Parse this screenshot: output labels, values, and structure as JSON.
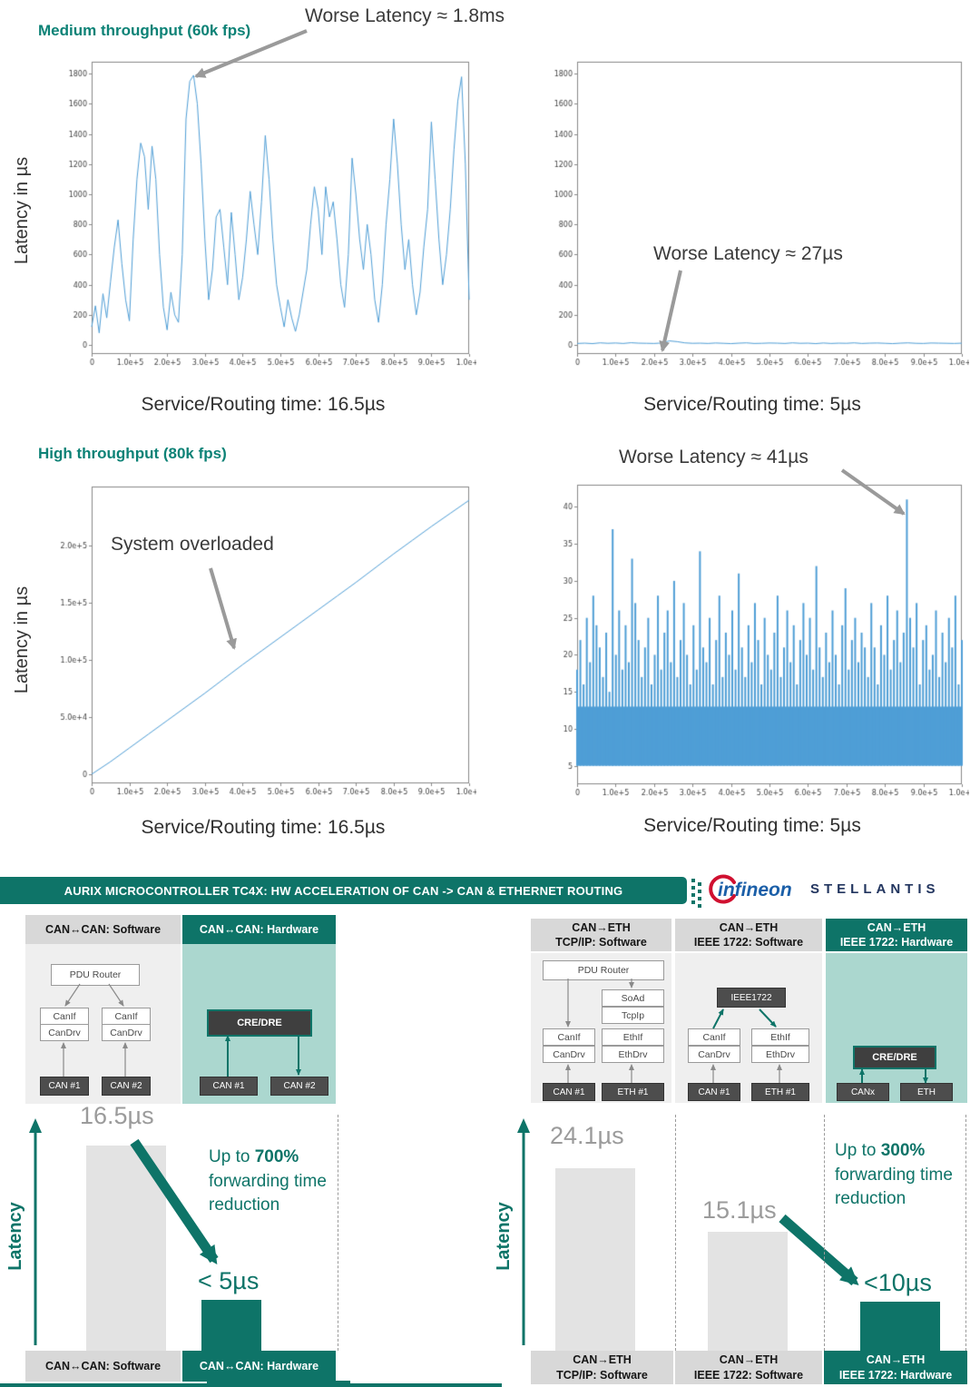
{
  "labels": {
    "medium": "Medium throughput (60k fps)",
    "high": "High throughput (80k fps)",
    "ylabel": "Latency in µs"
  },
  "annotations": {
    "worse_18ms": "Worse Latency ≈ 1.8ms",
    "worse_27us": "Worse Latency ≈ 27µs",
    "worse_41us": "Worse Latency ≈ 41µs",
    "overloaded": "System overloaded"
  },
  "chart_data": [
    {
      "id": "medium_sw",
      "type": "line",
      "title": "Medium throughput (60k fps) - software routing latency",
      "caption": "Service/Routing time: 16.5µs",
      "annotation": "Worse Latency ≈ 1.8ms",
      "color": "#4f9ed6",
      "xlim": [
        0,
        1000000
      ],
      "ylim": [
        -60,
        1880
      ],
      "x_step": 10000,
      "x_tick_labels": [
        "0",
        "1.0e+5",
        "2.0e+5",
        "3.0e+5",
        "4.0e+5",
        "5.0e+5",
        "6.0e+5",
        "7.0e+5",
        "8.0e+5",
        "9.0e+5",
        "1.0e+6"
      ],
      "y_ticks": [
        0,
        200,
        400,
        600,
        800,
        1000,
        1200,
        1400,
        1600,
        1800
      ],
      "y_tick_labels": [
        "0",
        "200",
        "400",
        "600",
        "800",
        "1000",
        "1200",
        "1400",
        "1600",
        "1800"
      ],
      "y": [
        120,
        260,
        80,
        340,
        180,
        420,
        650,
        830,
        540,
        300,
        160,
        700,
        1100,
        1340,
        1250,
        900,
        1320,
        1100,
        600,
        250,
        100,
        350,
        200,
        150,
        600,
        1500,
        1750,
        1790,
        1600,
        1200,
        700,
        300,
        500,
        850,
        900,
        650,
        400,
        880,
        600,
        300,
        450,
        700,
        1020,
        800,
        600,
        950,
        1390,
        1100,
        700,
        400,
        250,
        120,
        300,
        180,
        90,
        200,
        350,
        500,
        800,
        1050,
        900,
        600,
        1050,
        850,
        950,
        700,
        400,
        250,
        600,
        1240,
        1000,
        700,
        500,
        800,
        600,
        300,
        150,
        400,
        800,
        1100,
        1500,
        1200,
        800,
        500,
        700,
        400,
        200,
        350,
        650,
        900,
        1480,
        1100,
        700,
        400,
        600,
        900,
        1300,
        1620,
        1780,
        1200,
        300
      ]
    },
    {
      "id": "medium_hw",
      "type": "line",
      "title": "Medium throughput (60k fps) - hardware routing latency",
      "caption": "Service/Routing time: 5µs",
      "annotation": "Worse Latency ≈ 27µs",
      "color": "#4f9ed6",
      "xlim": [
        0,
        1000000
      ],
      "ylim": [
        -60,
        1880
      ],
      "x_step": 20000,
      "x_tick_labels": [
        "0",
        "1.0e+5",
        "2.0e+5",
        "3.0e+5",
        "4.0e+5",
        "5.0e+5",
        "6.0e+5",
        "7.0e+5",
        "8.0e+5",
        "9.0e+5",
        "1.0e+6"
      ],
      "y_ticks": [
        0,
        200,
        400,
        600,
        800,
        1000,
        1200,
        1400,
        1600,
        1800
      ],
      "y_tick_labels": [
        "0",
        "200",
        "400",
        "600",
        "800",
        "1000",
        "1200",
        "1400",
        "1600",
        "1800"
      ],
      "y": [
        10,
        12,
        9,
        14,
        11,
        13,
        10,
        15,
        12,
        11,
        10,
        13,
        27,
        22,
        14,
        11,
        12,
        10,
        13,
        11,
        9,
        12,
        14,
        10,
        11,
        13,
        12,
        10,
        14,
        11,
        12,
        9,
        13,
        10,
        12,
        11,
        14,
        10,
        12,
        13,
        11,
        9,
        12,
        14,
        11,
        10,
        13,
        12,
        11,
        10,
        12
      ]
    },
    {
      "id": "high_sw",
      "type": "line",
      "title": "High throughput (80k fps) - software routing latency (system overloaded)",
      "caption": "Service/Routing time: 16.5µs",
      "annotation": "System overloaded",
      "color": "#4f9ed6",
      "xlim": [
        0,
        1000000
      ],
      "ylim": [
        -8000,
        252000
      ],
      "x_step": 50000,
      "x_tick_labels": [
        "0",
        "1.0e+5",
        "2.0e+5",
        "3.0e+5",
        "4.0e+5",
        "5.0e+5",
        "6.0e+5",
        "7.0e+5",
        "8.0e+5",
        "9.0e+5",
        "1.0e+6"
      ],
      "y_ticks": [
        0,
        50000,
        100000,
        150000,
        200000
      ],
      "y_tick_labels": [
        "0",
        "5.0e+4",
        "1.0e+5",
        "1.5e+5",
        "2.0e+5"
      ],
      "y": [
        0,
        11000,
        23000,
        35000,
        47000,
        59000,
        71000,
        83500,
        96000,
        108000,
        120000,
        132000,
        144000,
        156000,
        168000,
        180500,
        193000,
        205000,
        217000,
        228500,
        240000
      ]
    },
    {
      "id": "high_hw",
      "type": "vlines",
      "title": "High throughput (80k fps) - hardware routing latency",
      "caption": "Service/Routing time: 5µs",
      "annotation": "Worse Latency ≈ 41µs",
      "color": "#4f9ed6",
      "xlim": [
        0,
        1000000
      ],
      "ylim": [
        2.5,
        43
      ],
      "baseline": 5,
      "base_fill_to": 13,
      "x_step": 8403.4,
      "x_tick_labels": [
        "0",
        "1.0e+5",
        "2.0e+5",
        "3.0e+5",
        "4.0e+5",
        "5.0e+5",
        "6.0e+5",
        "7.0e+5",
        "8.0e+5",
        "9.0e+5",
        "1.0e+6"
      ],
      "y_ticks": [
        5,
        10,
        15,
        20,
        25,
        30,
        35,
        40
      ],
      "y_tick_labels": [
        "5",
        "10",
        "15",
        "20",
        "25",
        "30",
        "35",
        "40"
      ],
      "y": [
        18,
        22,
        16,
        25,
        19,
        28,
        24,
        21,
        17,
        23,
        15,
        37,
        20,
        26,
        18,
        24,
        19,
        33,
        27,
        22,
        17,
        21,
        25,
        16,
        20,
        28,
        18,
        23,
        26,
        19,
        30,
        17,
        22,
        27,
        20,
        16,
        24,
        18,
        34,
        21,
        19,
        25,
        16,
        22,
        28,
        17,
        23,
        20,
        26,
        18,
        31,
        21,
        17,
        24,
        19,
        27,
        22,
        16,
        25,
        20,
        18,
        23,
        28,
        17,
        21,
        26,
        19,
        24,
        16,
        22,
        27,
        20,
        25,
        18,
        32,
        21,
        17,
        23,
        19,
        26,
        20,
        16,
        24,
        29,
        18,
        22,
        25,
        19,
        23,
        21,
        17,
        27,
        21,
        16,
        24,
        20,
        28,
        18,
        22,
        26,
        19,
        23,
        41,
        25,
        21,
        27,
        16,
        22,
        24,
        18,
        20,
        26,
        17,
        23,
        19,
        25,
        21,
        28,
        16,
        22
      ]
    }
  ],
  "banner": {
    "title": "AURIX MICROCONTROLLER TC4X: HW ACCELERATION OF CAN -> CAN & ETHERNET ROUTING"
  },
  "logos": {
    "infineon": "infineon",
    "stellantis": "STELLANTIS"
  },
  "left_panel": {
    "sw_title": "CAN↔CAN: Software",
    "hw_title": "CAN↔CAN: Hardware",
    "pdu": "PDU Router",
    "canif": "CanIf",
    "candrv": "CanDrv",
    "can1": "CAN #1",
    "can2": "CAN #2",
    "credre": "CRE/DRE",
    "latency": "Latency",
    "bar_sw": "16.5µs",
    "bar_hw": "< 5µs",
    "up_to": "Up to ",
    "pct": "700%",
    "fwd": "forwarding time",
    "red": "reduction"
  },
  "right_panel": {
    "h1a": "CAN→ETH",
    "h1b": "TCP/IP: Software",
    "h2a": "CAN→ETH",
    "h2b": "IEEE 1722: Software",
    "h3a": "CAN→ETH",
    "h3b": "IEEE 1722: Hardware",
    "pdu": "PDU Router",
    "soad": "SoAd",
    "tcpip": "TcpIp",
    "canif": "CanIf",
    "ethif": "EthIf",
    "candrv": "CanDrv",
    "ethdrv": "EthDrv",
    "can1": "CAN #1",
    "eth1": "ETH #1",
    "ieee": "IEEE1722",
    "credre": "CRE/DRE",
    "canx": "CANx",
    "eth": "ETH",
    "latency": "Latency",
    "bar1": "24.1µs",
    "bar2": "15.1µs",
    "bar3": "<10µs",
    "up_to": "Up to ",
    "pct": "300%",
    "fwd": "forwarding time",
    "red": "reduction"
  }
}
